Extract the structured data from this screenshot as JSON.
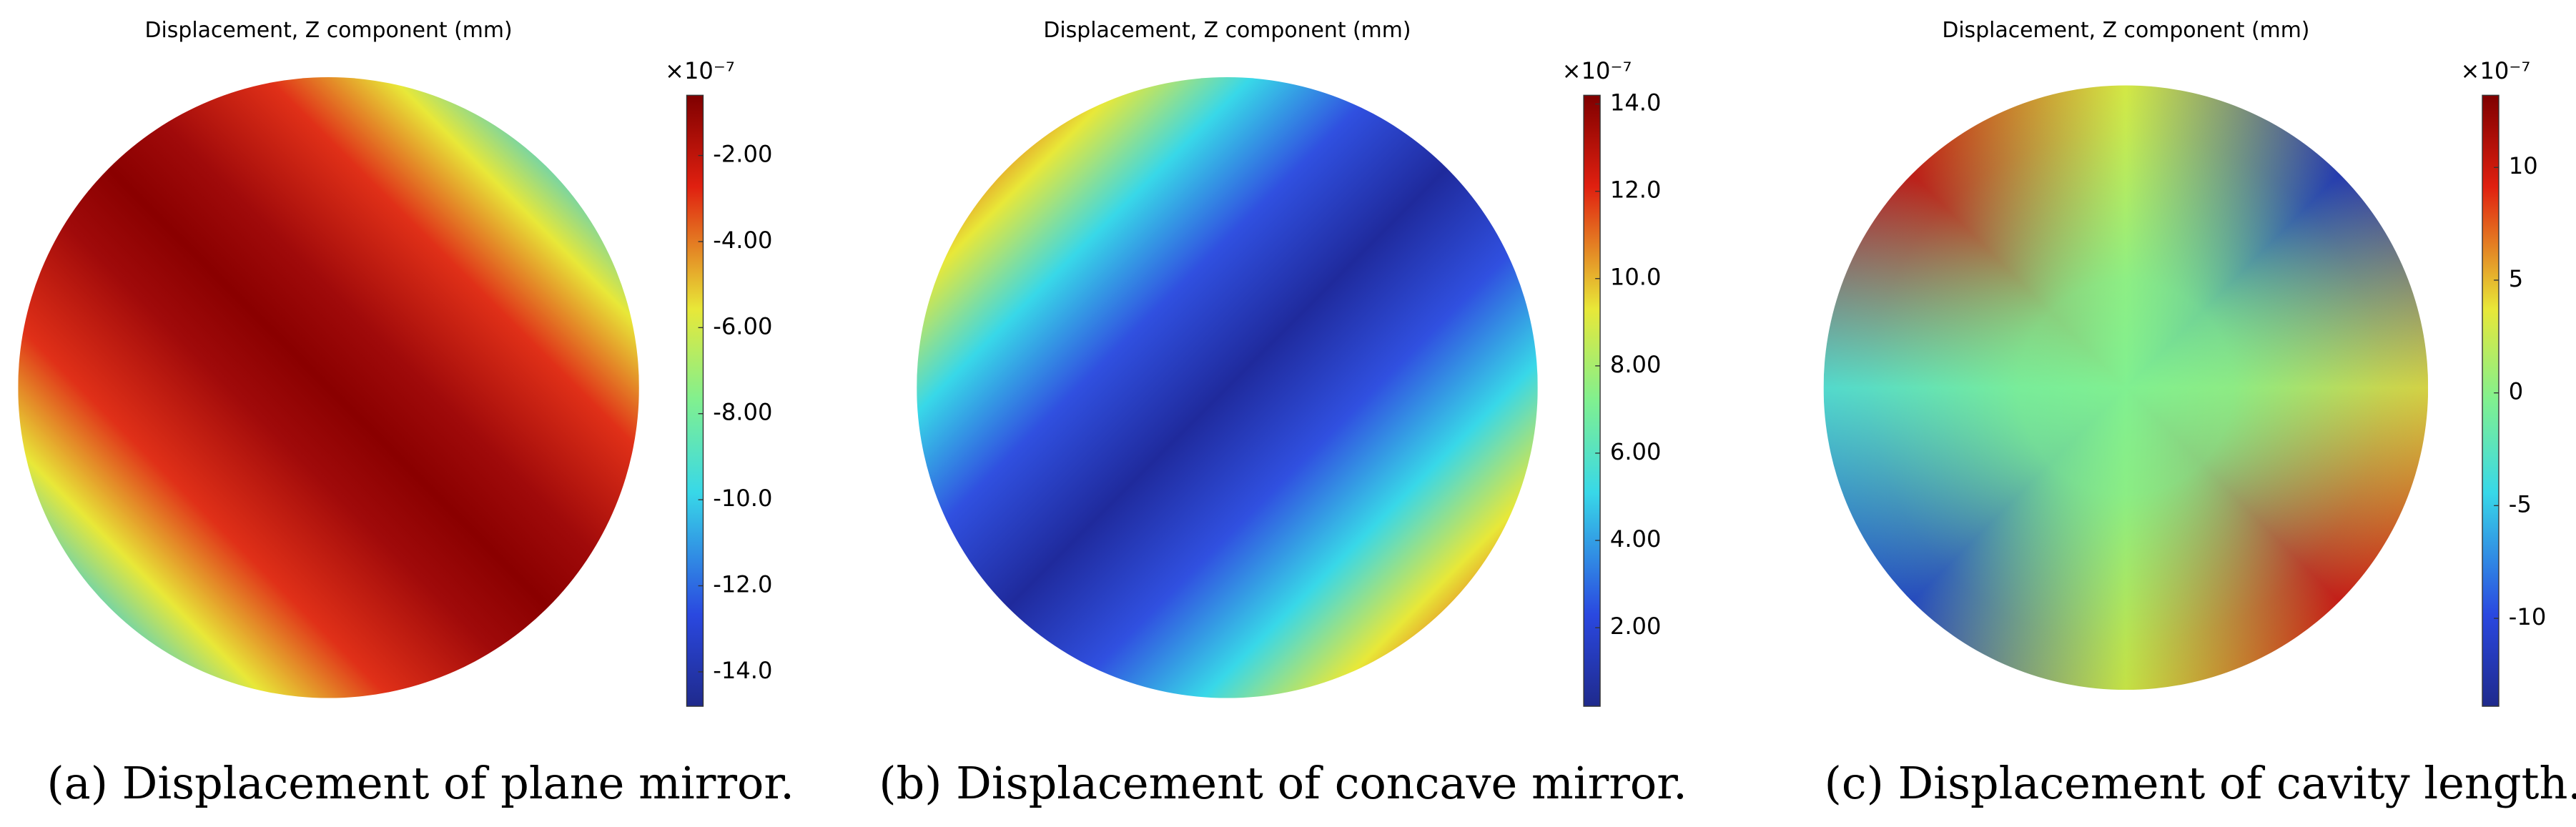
{
  "chart_data": [
    {
      "type": "heatmap",
      "title": "Displacement, Z component (mm)",
      "colorbar_exponent": "×10⁻⁷",
      "clim": [
        -14.8,
        -0.6
      ],
      "cticks": [
        {
          "value": -2,
          "label": "-2.00"
        },
        {
          "value": -4,
          "label": "-4.00"
        },
        {
          "value": -6,
          "label": "-6.00"
        },
        {
          "value": -8,
          "label": "-8.00"
        },
        {
          "value": -10,
          "label": "-10.0"
        },
        {
          "value": -12,
          "label": "-12.0"
        },
        {
          "value": -14,
          "label": "-14.0"
        }
      ],
      "caption": "(a)  Displacement of plane mirror."
    },
    {
      "type": "heatmap",
      "title": "Displacement, Z component (mm)",
      "colorbar_exponent": "×10⁻⁷",
      "clim": [
        0.2,
        14.2
      ],
      "cticks": [
        {
          "value": 14,
          "label": "14.0"
        },
        {
          "value": 12,
          "label": "12.0"
        },
        {
          "value": 10,
          "label": "10.0"
        },
        {
          "value": 8,
          "label": "8.00"
        },
        {
          "value": 6,
          "label": "6.00"
        },
        {
          "value": 4,
          "label": "4.00"
        },
        {
          "value": 2,
          "label": "2.00"
        }
      ],
      "caption": "(b)  Displacement of concave mirror."
    },
    {
      "type": "heatmap",
      "title": "Displacement, Z component (mm)",
      "colorbar_exponent": "×10⁻⁷",
      "clim": [
        -13.9,
        13.2
      ],
      "cticks": [
        10,
        5,
        0,
        -5,
        -10
      ],
      "caption": "(c)  Displacement of cavity length."
    }
  ]
}
